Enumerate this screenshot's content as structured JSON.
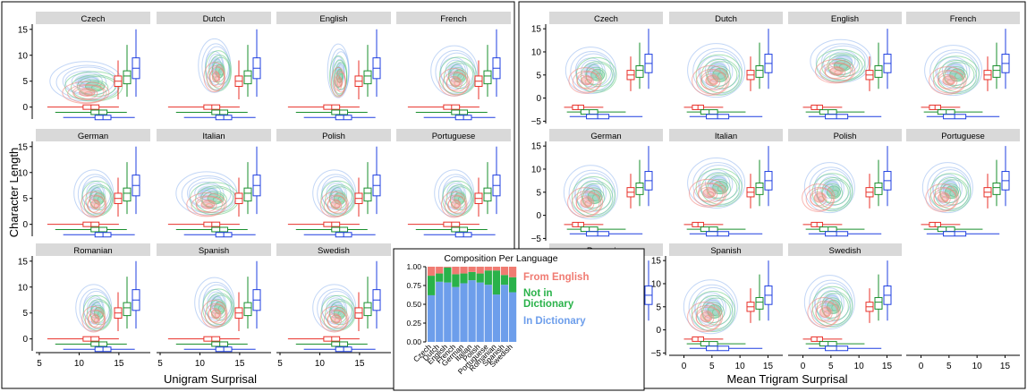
{
  "left_figure": {
    "ylabel": "Character Length",
    "xlabel": "Unigram Surprisal",
    "y_ticks": [
      "15",
      "10",
      "5",
      "0"
    ],
    "x_ticks": [
      "5",
      "10",
      "15"
    ],
    "panels": [
      "Czech",
      "Dutch",
      "English",
      "French",
      "German",
      "Italian",
      "Polish",
      "Portuguese",
      "Romanian",
      "Spanish",
      "Swedish"
    ]
  },
  "right_figure": {
    "xlabel": "Mean Trigram Surprisal",
    "y_ticks": [
      "15",
      "10",
      "5",
      "0",
      "−5"
    ],
    "x_ticks": [
      "0",
      "5",
      "10",
      "15"
    ],
    "panels": [
      "Czech",
      "Dutch",
      "English",
      "French",
      "German",
      "Italian",
      "Polish",
      "Portuguese",
      "Romanian",
      "Spanish",
      "Swedish"
    ]
  },
  "chart_data": {
    "type": "bar",
    "title": "Composition Per Language",
    "categories": [
      "Czech",
      "Dutch",
      "English",
      "French",
      "German",
      "Italian",
      "Polish",
      "Portuguese",
      "Romanian",
      "Spanish",
      "Swedish"
    ],
    "ylim": [
      0,
      1
    ],
    "y_ticks": [
      "1.00",
      "0.75",
      "0.50",
      "0.25",
      "0.00"
    ],
    "stacked": true,
    "series": [
      {
        "name": "In Dictionary",
        "color": "#6d9eeb",
        "values": [
          0.62,
          0.8,
          0.79,
          0.73,
          0.78,
          0.82,
          0.79,
          0.76,
          0.63,
          0.76,
          0.66
        ]
      },
      {
        "name": "Not in Dictionary",
        "color": "#2ab24a",
        "values": [
          0.26,
          0.11,
          0.2,
          0.17,
          0.13,
          0.11,
          0.12,
          0.19,
          0.32,
          0.13,
          0.2
        ]
      },
      {
        "name": "From English",
        "color": "#f07b72",
        "values": [
          0.12,
          0.09,
          0.01,
          0.1,
          0.09,
          0.07,
          0.09,
          0.05,
          0.05,
          0.11,
          0.14
        ]
      }
    ],
    "legend": [
      "From English",
      "Not in\nDictionary",
      "In Dictionary"
    ],
    "legend_colors": [
      "#f07b72",
      "#2ab24a",
      "#6d9eeb"
    ]
  },
  "colors": {
    "from_english": "#e8312a",
    "not_in_dictionary": "#1a8f2e",
    "in_dictionary": "#1f3fe0",
    "strip": "#d9d9d9"
  }
}
